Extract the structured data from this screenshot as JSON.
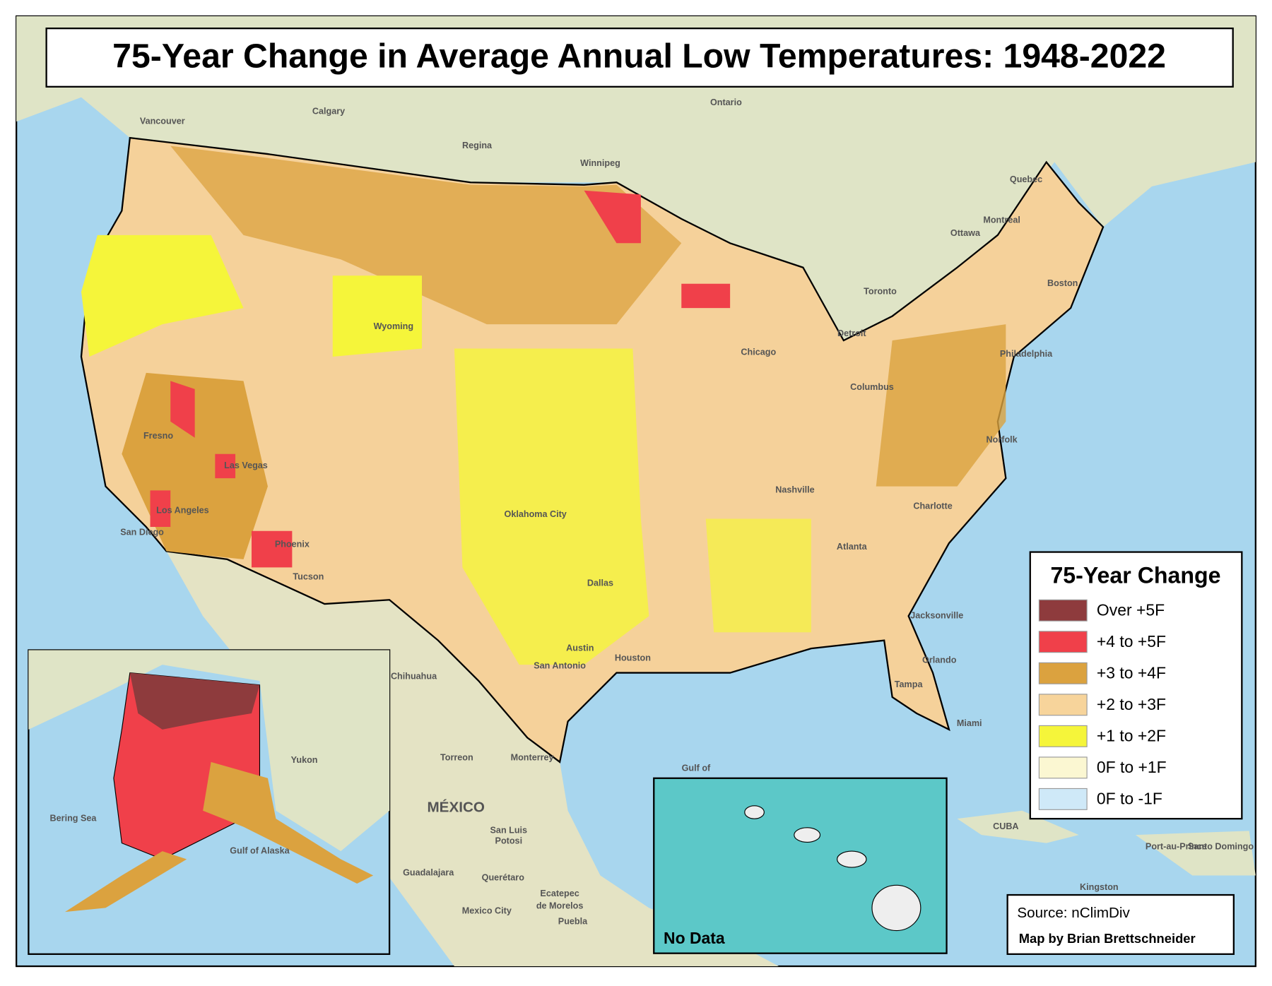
{
  "header": {
    "title": "75-Year Change in Average Annual Low Temperatures: 1948-2022"
  },
  "legend": {
    "title": "75-Year Change",
    "items": [
      {
        "label": "Over +5F",
        "color": "#8e3b3d"
      },
      {
        "label": "+4 to +5F",
        "color": "#f0404a"
      },
      {
        "label": "+3 to +4F",
        "color": "#dba23f"
      },
      {
        "label": "+2 to +3F",
        "color": "#f7d49b"
      },
      {
        "label": "+1 to +2F",
        "color": "#f5f53a"
      },
      {
        "label": "0F to +1F",
        "color": "#fbf7d2"
      },
      {
        "label": "0F to -1F",
        "color": "#cfe9f8"
      }
    ]
  },
  "hawaii_inset": {
    "note": "No Data"
  },
  "credits": {
    "source": "Source: nClimDiv",
    "author": "Map by Brian Brettschneider"
  },
  "place_labels": [
    "Vancouver",
    "Calgary",
    "Regina",
    "Winnipeg",
    "Ontario",
    "Quebec",
    "Montreal",
    "Ottawa",
    "Toronto",
    "Boston",
    "Detroit",
    "Chicago",
    "Wyoming",
    "Fresno",
    "Las Vegas",
    "Los Angeles",
    "San Diego",
    "Phoenix",
    "Tucson",
    "Oklahoma City",
    "Dallas",
    "Austin",
    "San Antonio",
    "Houston",
    "Nashville",
    "Atlanta",
    "Charlotte",
    "Columbus",
    "Philadelphia",
    "Norfolk",
    "Jacksonville",
    "Orlando",
    "Tampa",
    "Miami",
    "Chihuahua",
    "Torreon",
    "Monterrey",
    "MÉXICO",
    "San Luis",
    "Potosi",
    "Guadalajara",
    "Querétaro",
    "Ecatepec",
    "de Morelos",
    "Mexico City",
    "Puebla",
    "Gulf of",
    "CUBA",
    "Port-au-Prince",
    "Santo Domingo",
    "Kingston",
    "Bering Sea",
    "Gulf of Alaska",
    "Yukon"
  ]
}
